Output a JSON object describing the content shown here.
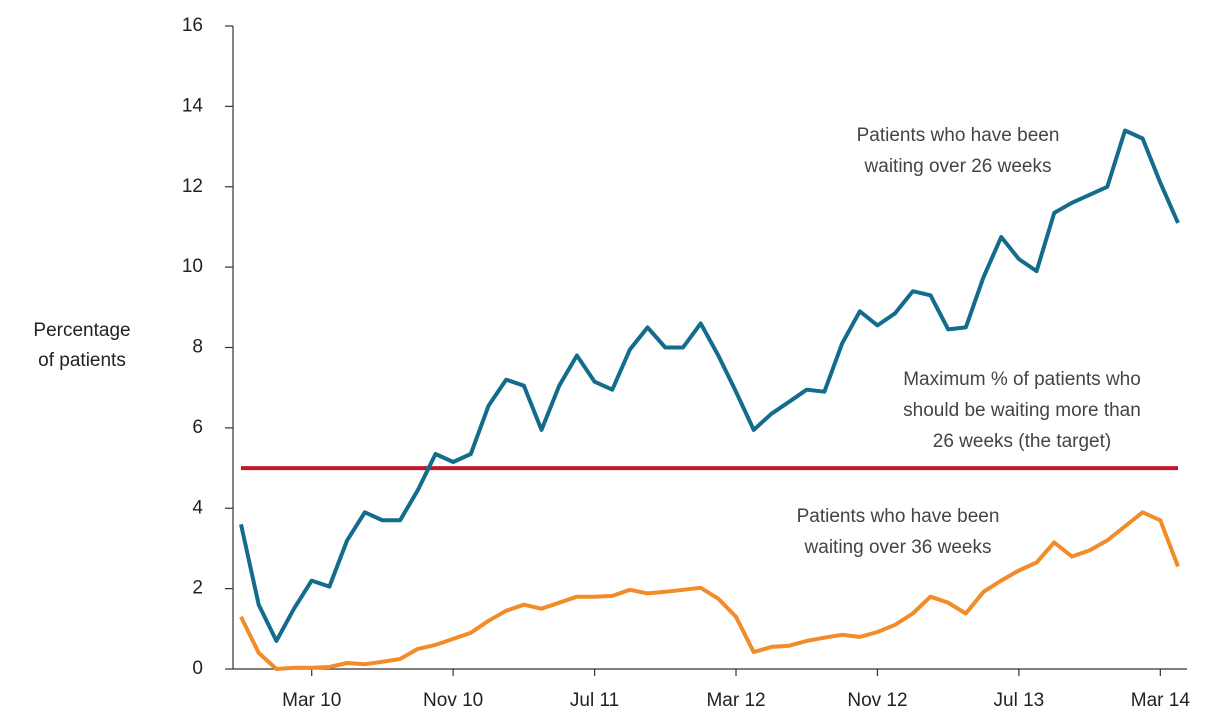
{
  "chart_data": {
    "type": "line",
    "ylabel": [
      "Percentage",
      "of patients"
    ],
    "categories": [
      null,
      null,
      null,
      null,
      "Mar 10",
      null,
      null,
      null,
      null,
      null,
      null,
      null,
      "Nov 10",
      null,
      null,
      null,
      null,
      null,
      null,
      null,
      "Jul 11",
      null,
      null,
      null,
      null,
      null,
      null,
      null,
      "Mar 12",
      null,
      null,
      null,
      null,
      null,
      null,
      null,
      "Nov 12",
      null,
      null,
      null,
      null,
      null,
      null,
      null,
      "Jul 13",
      null,
      null,
      null,
      null,
      null,
      null,
      null,
      "Mar 14",
      null
    ],
    "series": [
      {
        "name": "Patients who have been waiting over 26 weeks",
        "color": "#146c8c",
        "values": [
          3.6,
          1.6,
          0.7,
          1.5,
          2.2,
          2.05,
          3.2,
          3.9,
          3.7,
          3.7,
          4.45,
          5.35,
          5.15,
          5.35,
          6.55,
          7.2,
          7.05,
          5.95,
          7.05,
          7.8,
          7.15,
          6.95,
          7.95,
          8.5,
          8.0,
          8.0,
          8.6,
          7.8,
          6.9,
          5.95,
          6.35,
          6.65,
          6.95,
          6.9,
          8.1,
          8.9,
          8.55,
          8.85,
          9.4,
          9.3,
          8.45,
          8.5,
          9.75,
          10.75,
          10.2,
          9.9,
          11.35,
          11.6,
          11.8,
          12.0,
          13.4,
          13.2,
          12.1,
          11.1
        ]
      },
      {
        "name": "Patients who have been waiting over 36 weeks",
        "color": "#f28c28",
        "values": [
          1.3,
          0.4,
          0.0,
          0.03,
          0.03,
          0.05,
          0.15,
          0.12,
          0.18,
          0.25,
          0.5,
          0.6,
          0.75,
          0.9,
          1.2,
          1.45,
          1.6,
          1.5,
          1.65,
          1.8,
          1.8,
          1.82,
          1.97,
          1.88,
          1.92,
          1.97,
          2.02,
          1.75,
          1.3,
          0.42,
          0.55,
          0.58,
          0.7,
          0.78,
          0.85,
          0.8,
          0.92,
          1.1,
          1.38,
          1.8,
          1.65,
          1.38,
          1.92,
          2.2,
          2.45,
          2.65,
          3.15,
          2.8,
          2.95,
          3.2,
          3.55,
          3.9,
          3.7,
          2.55
        ]
      }
    ],
    "target": {
      "value": 5,
      "color": "#c0182a",
      "label": [
        "Maximum % of patients who",
        "should be waiting more than",
        "26 weeks (the target)"
      ]
    },
    "series_labels": [
      [
        "Patients who have been",
        "waiting over 26 weeks"
      ],
      [
        "Patients who have been",
        "waiting over 36 weeks"
      ]
    ],
    "ylim": [
      0,
      16
    ],
    "yticks": [
      0,
      2,
      4,
      6,
      8,
      10,
      12,
      14,
      16
    ]
  }
}
